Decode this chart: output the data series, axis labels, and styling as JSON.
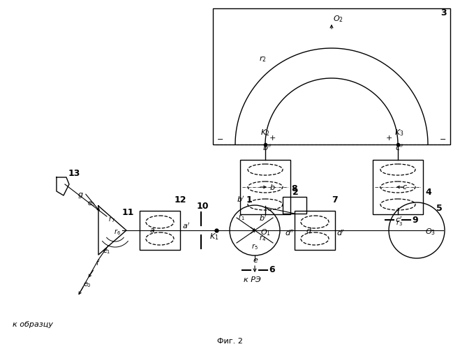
{
  "bg_color": "#ffffff",
  "line_color": "#000000",
  "figsize": [
    6.59,
    5.0
  ],
  "dpi": 100,
  "caption": "Фиг. 2",
  "к_образцу": "к образцу",
  "к_РЭ": "к РЭ"
}
